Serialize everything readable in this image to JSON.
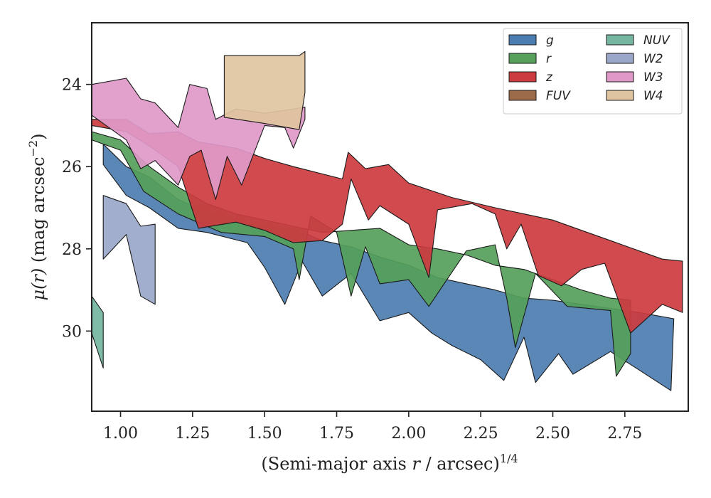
{
  "chart_data": {
    "type": "area",
    "xlabel": {
      "pre": "(Semi-major axis ",
      "var": "r",
      "post": " / arcsec)",
      "sup": "1/4"
    },
    "ylabel": {
      "var": "μ(r)",
      "post": " (mag arcsec",
      "sup": "−2",
      "close": ")"
    },
    "xlim": [
      0.9,
      2.97
    ],
    "ylim": [
      31.95,
      22.5
    ],
    "y_inverted": true,
    "xticks": [
      1.0,
      1.25,
      1.5,
      1.75,
      2.0,
      2.25,
      2.5,
      2.75
    ],
    "xtick_labels": [
      "1.00",
      "1.25",
      "1.50",
      "1.75",
      "2.00",
      "2.25",
      "2.50",
      "2.75"
    ],
    "yticks": [
      24,
      26,
      28,
      30
    ],
    "ytick_labels": [
      "24",
      "26",
      "28",
      "30"
    ],
    "grid": false,
    "legend_position": "top-right",
    "legend_columns": 2,
    "series": [
      {
        "name": "g",
        "color": "#4c7db0",
        "upper": [
          [
            0.94,
            25.45
          ],
          [
            1.02,
            26.0
          ],
          [
            1.1,
            26.25
          ],
          [
            1.2,
            26.8
          ],
          [
            1.3,
            27.1
          ],
          [
            1.4,
            27.3
          ],
          [
            1.5,
            27.45
          ],
          [
            1.6,
            27.5
          ],
          [
            1.7,
            27.8
          ],
          [
            1.8,
            27.95
          ],
          [
            1.9,
            28.2
          ],
          [
            2.0,
            28.4
          ],
          [
            2.1,
            28.7
          ],
          [
            2.2,
            28.85
          ],
          [
            2.3,
            29.0
          ],
          [
            2.4,
            29.2
          ],
          [
            2.5,
            29.25
          ],
          [
            2.6,
            29.35
          ],
          [
            2.7,
            29.45
          ],
          [
            2.8,
            29.55
          ],
          [
            2.92,
            29.7
          ]
        ],
        "lower": [
          [
            0.94,
            25.95
          ],
          [
            1.02,
            26.7
          ],
          [
            1.1,
            27.0
          ],
          [
            1.2,
            27.5
          ],
          [
            1.3,
            27.6
          ],
          [
            1.44,
            27.85
          ],
          [
            1.5,
            28.45
          ],
          [
            1.57,
            29.35
          ],
          [
            1.63,
            28.3
          ],
          [
            1.7,
            29.15
          ],
          [
            1.8,
            28.6
          ],
          [
            1.9,
            29.75
          ],
          [
            2.0,
            29.55
          ],
          [
            2.08,
            30.05
          ],
          [
            2.15,
            30.35
          ],
          [
            2.25,
            30.7
          ],
          [
            2.33,
            31.2
          ],
          [
            2.4,
            30.15
          ],
          [
            2.44,
            31.25
          ],
          [
            2.52,
            30.55
          ],
          [
            2.57,
            31.05
          ],
          [
            2.7,
            30.5
          ],
          [
            2.8,
            30.95
          ],
          [
            2.91,
            31.45
          ]
        ]
      },
      {
        "name": "r",
        "color": "#55a05a",
        "upper": [
          [
            0.9,
            25.15
          ],
          [
            1.0,
            25.35
          ],
          [
            1.1,
            26.0
          ],
          [
            1.2,
            26.5
          ],
          [
            1.3,
            26.9
          ],
          [
            1.4,
            27.15
          ],
          [
            1.5,
            27.3
          ],
          [
            1.6,
            27.45
          ],
          [
            1.7,
            27.6
          ],
          [
            1.8,
            27.55
          ],
          [
            1.9,
            27.5
          ],
          [
            2.0,
            27.9
          ],
          [
            2.1,
            28.0
          ],
          [
            2.2,
            28.15
          ],
          [
            2.3,
            28.4
          ],
          [
            2.4,
            28.5
          ],
          [
            2.5,
            28.75
          ],
          [
            2.6,
            29.0
          ],
          [
            2.7,
            29.2
          ],
          [
            2.77,
            29.25
          ]
        ],
        "lower": [
          [
            0.9,
            25.35
          ],
          [
            1.0,
            25.6
          ],
          [
            1.08,
            26.6
          ],
          [
            1.2,
            27.15
          ],
          [
            1.35,
            27.6
          ],
          [
            1.5,
            27.7
          ],
          [
            1.6,
            28.0
          ],
          [
            1.62,
            28.75
          ],
          [
            1.66,
            27.2
          ],
          [
            1.75,
            27.6
          ],
          [
            1.8,
            29.15
          ],
          [
            1.85,
            27.95
          ],
          [
            1.9,
            28.85
          ],
          [
            2.0,
            28.75
          ],
          [
            2.07,
            29.4
          ],
          [
            2.2,
            28.05
          ],
          [
            2.3,
            27.9
          ],
          [
            2.34,
            29.2
          ],
          [
            2.37,
            30.4
          ],
          [
            2.44,
            28.6
          ],
          [
            2.55,
            29.4
          ],
          [
            2.7,
            29.5
          ],
          [
            2.72,
            31.1
          ],
          [
            2.77,
            30.55
          ]
        ]
      },
      {
        "name": "z",
        "color": "#cc3b3f",
        "upper": [
          [
            0.9,
            24.85
          ],
          [
            1.02,
            24.85
          ],
          [
            1.1,
            25.2
          ],
          [
            1.2,
            25.15
          ],
          [
            1.27,
            25.4
          ],
          [
            1.4,
            25.55
          ],
          [
            1.5,
            25.8
          ],
          [
            1.6,
            26.0
          ],
          [
            1.77,
            26.3
          ],
          [
            1.79,
            25.65
          ],
          [
            1.85,
            26.05
          ],
          [
            1.93,
            25.95
          ],
          [
            2.0,
            26.4
          ],
          [
            2.15,
            26.75
          ],
          [
            2.3,
            27.0
          ],
          [
            2.4,
            27.15
          ],
          [
            2.5,
            27.3
          ],
          [
            2.6,
            27.55
          ],
          [
            2.7,
            27.8
          ],
          [
            2.8,
            28.05
          ],
          [
            2.88,
            28.25
          ],
          [
            2.95,
            28.3
          ]
        ],
        "lower": [
          [
            0.9,
            25.0
          ],
          [
            1.02,
            25.15
          ],
          [
            1.1,
            25.5
          ],
          [
            1.2,
            26.0
          ],
          [
            1.27,
            27.5
          ],
          [
            1.4,
            27.35
          ],
          [
            1.5,
            27.55
          ],
          [
            1.6,
            27.85
          ],
          [
            1.7,
            27.8
          ],
          [
            1.77,
            27.4
          ],
          [
            1.8,
            26.3
          ],
          [
            1.86,
            27.3
          ],
          [
            1.9,
            26.95
          ],
          [
            2.0,
            27.4
          ],
          [
            2.07,
            28.7
          ],
          [
            2.1,
            27.05
          ],
          [
            2.22,
            26.9
          ],
          [
            2.3,
            27.15
          ],
          [
            2.34,
            28.0
          ],
          [
            2.39,
            27.4
          ],
          [
            2.45,
            28.65
          ],
          [
            2.53,
            28.9
          ],
          [
            2.6,
            28.5
          ],
          [
            2.68,
            28.35
          ],
          [
            2.77,
            30.05
          ],
          [
            2.88,
            29.35
          ],
          [
            2.95,
            29.55
          ]
        ]
      },
      {
        "name": "FUV",
        "color": "#9c6b4a",
        "upper": [],
        "lower": []
      },
      {
        "name": "NUV",
        "color": "#74b6a0",
        "upper": [
          [
            0.9,
            29.15
          ],
          [
            0.94,
            29.55
          ]
        ],
        "lower": [
          [
            0.9,
            30.05
          ],
          [
            0.94,
            30.9
          ]
        ]
      },
      {
        "name": "W2",
        "color": "#9aa7c9",
        "upper": [
          [
            0.94,
            26.7
          ],
          [
            1.02,
            26.9
          ],
          [
            1.07,
            27.45
          ],
          [
            1.12,
            27.4
          ]
        ],
        "lower": [
          [
            0.94,
            28.25
          ],
          [
            1.02,
            27.65
          ],
          [
            1.07,
            29.15
          ],
          [
            1.12,
            29.35
          ]
        ]
      },
      {
        "name": "W3",
        "color": "#df99c9",
        "upper": [
          [
            0.9,
            24.0
          ],
          [
            1.02,
            23.85
          ],
          [
            1.07,
            24.35
          ],
          [
            1.12,
            24.45
          ],
          [
            1.2,
            25.05
          ],
          [
            1.24,
            24.0
          ],
          [
            1.3,
            24.1
          ],
          [
            1.33,
            24.85
          ],
          [
            1.4,
            24.6
          ],
          [
            1.5,
            24.7
          ],
          [
            1.6,
            24.6
          ],
          [
            1.64,
            24.55
          ]
        ],
        "lower": [
          [
            0.9,
            24.75
          ],
          [
            1.02,
            25.35
          ],
          [
            1.07,
            26.05
          ],
          [
            1.12,
            25.85
          ],
          [
            1.2,
            26.45
          ],
          [
            1.24,
            25.75
          ],
          [
            1.28,
            25.6
          ],
          [
            1.33,
            26.8
          ],
          [
            1.37,
            25.75
          ],
          [
            1.42,
            26.45
          ],
          [
            1.5,
            25.0
          ],
          [
            1.57,
            25.05
          ],
          [
            1.6,
            25.55
          ],
          [
            1.64,
            24.85
          ]
        ]
      },
      {
        "name": "W4",
        "color": "#dfc4a0",
        "upper": [
          [
            1.36,
            23.3
          ],
          [
            1.5,
            23.3
          ],
          [
            1.62,
            23.3
          ],
          [
            1.64,
            23.2
          ]
        ],
        "lower": [
          [
            1.36,
            24.8
          ],
          [
            1.5,
            24.95
          ],
          [
            1.62,
            25.1
          ],
          [
            1.64,
            24.2
          ]
        ]
      }
    ]
  }
}
